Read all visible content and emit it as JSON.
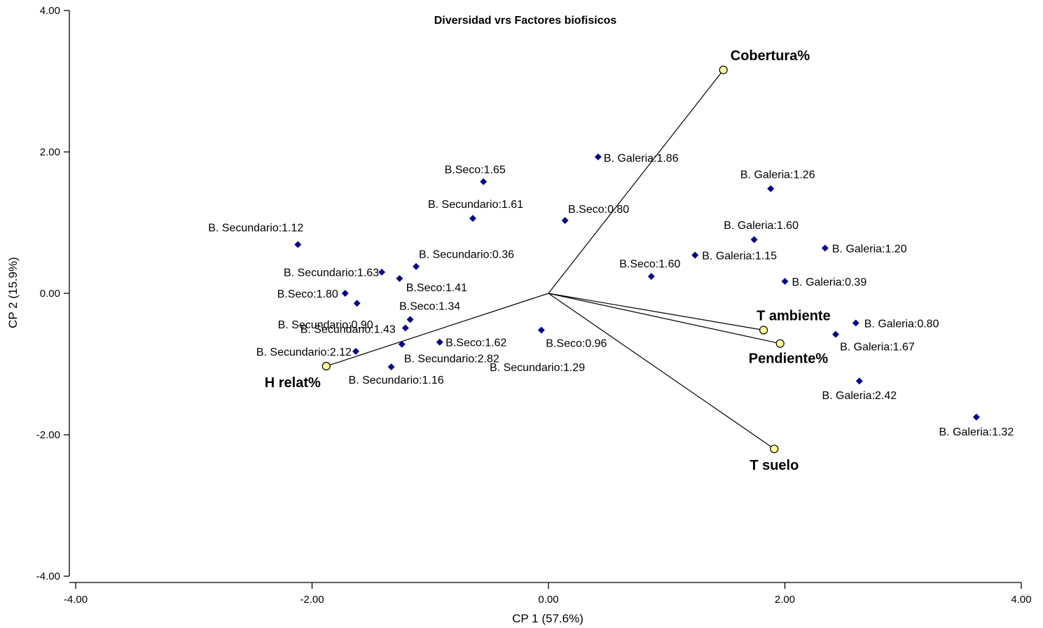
{
  "chart_data": {
    "type": "scatter",
    "title": "Diversidad vrs Factores biofisicos",
    "xlabel": "CP 1 (57.6%)",
    "ylabel": "CP 2 (15.9%)",
    "xlim": [
      -4,
      4
    ],
    "ylim": [
      -4,
      4
    ],
    "x_ticks": [
      "-4.00",
      "-2.00",
      "0.00",
      "2.00",
      "4.00"
    ],
    "y_ticks": [
      "4.00",
      "2.00",
      "0.00",
      "-2.00",
      "-4.00"
    ],
    "grid": false,
    "point_color": "#00008B",
    "vector_color": "#FFFF99",
    "points": [
      {
        "label": "B. Galeria:1.86",
        "x": 0.42,
        "y": 1.93
      },
      {
        "label": "B. Galeria:1.26",
        "x": 1.88,
        "y": 1.48
      },
      {
        "label": "B. Galeria:1.60",
        "x": 1.74,
        "y": 0.76
      },
      {
        "label": "B. Galeria:1.20",
        "x": 2.34,
        "y": 0.64
      },
      {
        "label": "B. Galeria:1.15",
        "x": 1.24,
        "y": 0.54
      },
      {
        "label": "B. Galeria:0.39",
        "x": 2.0,
        "y": 0.17
      },
      {
        "label": "B. Galeria:0.80",
        "x": 2.6,
        "y": -0.42
      },
      {
        "label": "B. Galeria:1.67",
        "x": 2.43,
        "y": -0.58
      },
      {
        "label": "B. Galeria:2.42",
        "x": 2.63,
        "y": -1.24
      },
      {
        "label": "B. Galeria:1.32",
        "x": 3.62,
        "y": -1.75
      },
      {
        "label": "B.Seco:1.65",
        "x": -0.55,
        "y": 1.58
      },
      {
        "label": "B.Seco:0.80",
        "x": 0.14,
        "y": 1.03
      },
      {
        "label": "B.Seco:1.60",
        "x": 0.87,
        "y": 0.24
      },
      {
        "label": "B.Seco:1.41",
        "x": -1.26,
        "y": 0.21
      },
      {
        "label": "B.Seco:1.80",
        "x": -1.72,
        "y": 0.0
      },
      {
        "label": "B.Seco:1.34",
        "x": -1.17,
        "y": -0.37
      },
      {
        "label": "B.Seco:1.62",
        "x": -0.92,
        "y": -0.69
      },
      {
        "label": "B.Seco:0.96",
        "x": -0.06,
        "y": -0.52
      },
      {
        "label": "B. Secundario:1.61",
        "x": -0.64,
        "y": 1.06
      },
      {
        "label": "B. Secundario:1.12",
        "x": -2.12,
        "y": 0.69
      },
      {
        "label": "B. Secundario:0.36",
        "x": -1.12,
        "y": 0.38
      },
      {
        "label": "B. Secundario:1.63",
        "x": -1.41,
        "y": 0.3
      },
      {
        "label": "B. Secundario:0.90",
        "x": -1.62,
        "y": -0.14
      },
      {
        "label": "B. Secundario:1.43",
        "x": -1.21,
        "y": -0.49
      },
      {
        "label": "B. Secundario:2.12",
        "x": -1.63,
        "y": -0.82
      },
      {
        "label": "B. Secundario:2.82",
        "x": -1.24,
        "y": -0.72
      },
      {
        "label": "B. Secundario:1.16",
        "x": -1.33,
        "y": -1.04
      },
      {
        "label": "B. Secundario:1.29",
        "x": 0.0,
        "y": 0.0
      }
    ],
    "vectors": [
      {
        "label": "Cobertura%",
        "x": 1.48,
        "y": 3.16
      },
      {
        "label": "T ambiente",
        "x": 1.82,
        "y": -0.52
      },
      {
        "label": "Pendiente%",
        "x": 1.96,
        "y": -0.71
      },
      {
        "label": "T suelo",
        "x": 1.91,
        "y": -2.2
      },
      {
        "label": "H relat%",
        "x": -1.88,
        "y": -1.03
      }
    ]
  }
}
